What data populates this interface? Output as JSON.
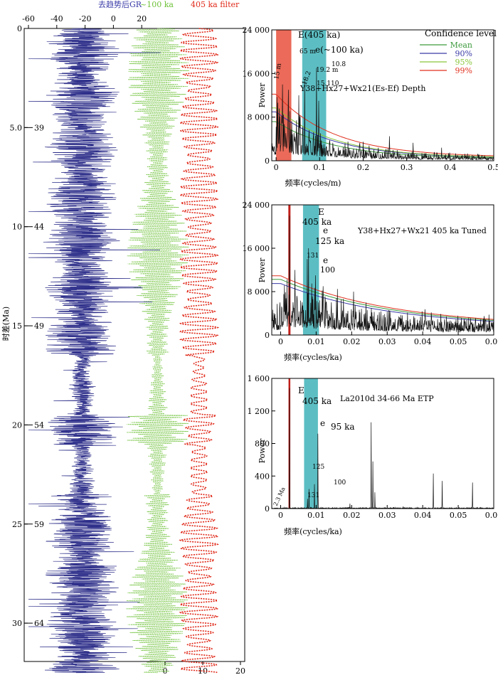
{
  "chart_data": [
    {
      "id": "left-panel",
      "type": "line",
      "top_axis_ticks": [
        "-60",
        "-40",
        "-20",
        "0",
        "20"
      ],
      "top_axis_values": [
        -60,
        -40,
        -20,
        0,
        20
      ],
      "bottom_axis_ticks": [
        "0",
        "10",
        "20"
      ],
      "bottom_axis_values": [
        0,
        10,
        20
      ],
      "legend": {
        "gr": "去趋势后GR",
        "e100": "~100 ka",
        "e405": "405 ka filter"
      },
      "colors": {
        "gr": "#2e2f8a",
        "e100": "#6fc23a",
        "e405": "#e02a1a"
      },
      "ylabel": "时差(Ma)",
      "time_ticks": [
        "0",
        "5.0",
        "10",
        "15",
        "20",
        "25",
        "30"
      ],
      "time_values": [
        0,
        5,
        10,
        15,
        20,
        25,
        30
      ],
      "age_ticks": [
        "39",
        "44",
        "49",
        "54",
        "59",
        "64"
      ],
      "age_values": [
        39,
        44,
        49,
        54,
        59,
        64
      ],
      "ylim_ma": [
        0,
        32.5
      ]
    },
    {
      "id": "depth-spectrum",
      "type": "line",
      "xlabel": "频率(cycles/m)",
      "ylabel": "Power",
      "title": "Y38+Hx27+Wx21(Es-Ef) Depth",
      "xlim": [
        -0.01,
        0.5
      ],
      "ylim": [
        0,
        24000
      ],
      "xticks": [
        "0",
        "0.1",
        "0.2",
        "0.3",
        "0.4",
        "0.5"
      ],
      "xtick_values": [
        0,
        0.1,
        0.2,
        0.3,
        0.4,
        0.5
      ],
      "yticks": [
        "0",
        "8 000",
        "16 000",
        "24 000"
      ],
      "ytick_values": [
        0,
        8000,
        16000,
        24000
      ],
      "legend_title": "Confidence level",
      "legend": [
        "Mean",
        "90%",
        "95%",
        "99%"
      ],
      "legend_colors": [
        "#3c9a3c",
        "#3a3aa8",
        "#8ac63a",
        "#e0301e"
      ],
      "bands": [
        {
          "label": "E(405 ka)",
          "x0": 0.0,
          "x1": 0.035,
          "color": "#e8503c"
        },
        {
          "label": "e(~100 ka)",
          "x0": 0.06,
          "x1": 0.115,
          "color": "#3fb3b8"
        }
      ],
      "annotations": [
        "65 m",
        "15 m",
        "19.2 m",
        "10.8",
        "15.1",
        "10",
        "18.2"
      ],
      "peaks": [
        {
          "x": 0.015,
          "y": 14000
        },
        {
          "x": 0.028,
          "y": 13000
        },
        {
          "x": 0.052,
          "y": 12000
        },
        {
          "x": 0.066,
          "y": 15000
        },
        {
          "x": 0.093,
          "y": 17000
        },
        {
          "x": 0.098,
          "y": 11000
        },
        {
          "x": 0.2,
          "y": 3500
        },
        {
          "x": 0.26,
          "y": 4500
        },
        {
          "x": 0.315,
          "y": 3300
        },
        {
          "x": 0.38,
          "y": 2400
        }
      ]
    },
    {
      "id": "tuned-spectrum",
      "type": "line",
      "xlabel": "频率(cycles/ka)",
      "ylabel": "Power",
      "title": "Y38+Hx27+Wx21 405 ka Tuned",
      "xlim": [
        -0.0025,
        0.06
      ],
      "ylim": [
        0,
        24000
      ],
      "xticks": [
        "0",
        "0.01",
        "0.02",
        "0.03",
        "0.04",
        "0.05",
        "0.06"
      ],
      "xtick_values": [
        0,
        0.01,
        0.02,
        0.03,
        0.04,
        0.05,
        0.06
      ],
      "yticks": [
        "0",
        "8 000",
        "16 000",
        "24 000"
      ],
      "ytick_values": [
        0,
        8000,
        16000,
        24000
      ],
      "bands": [
        {
          "x0": 0.0063,
          "x1": 0.0108,
          "color": "#3fb3b8"
        }
      ],
      "red_line_x": 0.00247,
      "annotations": [
        "E",
        "405 ka",
        "e",
        "125 ka",
        "131",
        "e",
        "100"
      ],
      "peaks": [
        {
          "x": 0.0025,
          "y": 22000
        },
        {
          "x": 0.0075,
          "y": 14000
        },
        {
          "x": 0.0079,
          "y": 16000
        },
        {
          "x": 0.0098,
          "y": 11000
        },
        {
          "x": 0.004,
          "y": 12000
        },
        {
          "x": 0.012,
          "y": 9000
        },
        {
          "x": 0.016,
          "y": 8500
        },
        {
          "x": 0.0205,
          "y": 8000
        },
        {
          "x": 0.024,
          "y": 6000
        }
      ]
    },
    {
      "id": "etp-spectrum",
      "type": "line",
      "xlabel": "频率(cycles/ka)",
      "ylabel": "Power",
      "title": "La2010d 34-66 Ma ETP",
      "xlim": [
        -0.0025,
        0.06
      ],
      "ylim": [
        0,
        1600
      ],
      "xticks": [
        "0",
        "0.01",
        "0.02",
        "0.03",
        "0.04",
        "0.05",
        "0.06"
      ],
      "xtick_values": [
        0,
        0.01,
        0.02,
        0.03,
        0.04,
        0.05,
        0.06
      ],
      "yticks": [
        "0",
        "400",
        "800",
        "1 200",
        "1 600"
      ],
      "ytick_values": [
        0,
        400,
        800,
        1200,
        1600
      ],
      "bands": [
        {
          "x0": 0.0066,
          "x1": 0.0105,
          "color": "#3fb3b8"
        }
      ],
      "red_line_x": 0.00247,
      "annotations": [
        "E",
        "405 ka",
        "e",
        "95 ka",
        "125",
        "131",
        "100",
        "2.3 Ma"
      ],
      "peaks": [
        {
          "x": 0.00247,
          "y": 1480
        },
        {
          "x": 0.008,
          "y": 240
        },
        {
          "x": 0.0076,
          "y": 120
        },
        {
          "x": 0.0095,
          "y": 300
        },
        {
          "x": 0.0105,
          "y": 920
        },
        {
          "x": 0.0195,
          "y": 60
        },
        {
          "x": 0.0255,
          "y": 1060
        },
        {
          "x": 0.026,
          "y": 580
        },
        {
          "x": 0.0265,
          "y": 200
        },
        {
          "x": 0.0345,
          "y": 25
        },
        {
          "x": 0.043,
          "y": 430
        },
        {
          "x": 0.0455,
          "y": 340
        },
        {
          "x": 0.054,
          "y": 320
        }
      ]
    }
  ]
}
